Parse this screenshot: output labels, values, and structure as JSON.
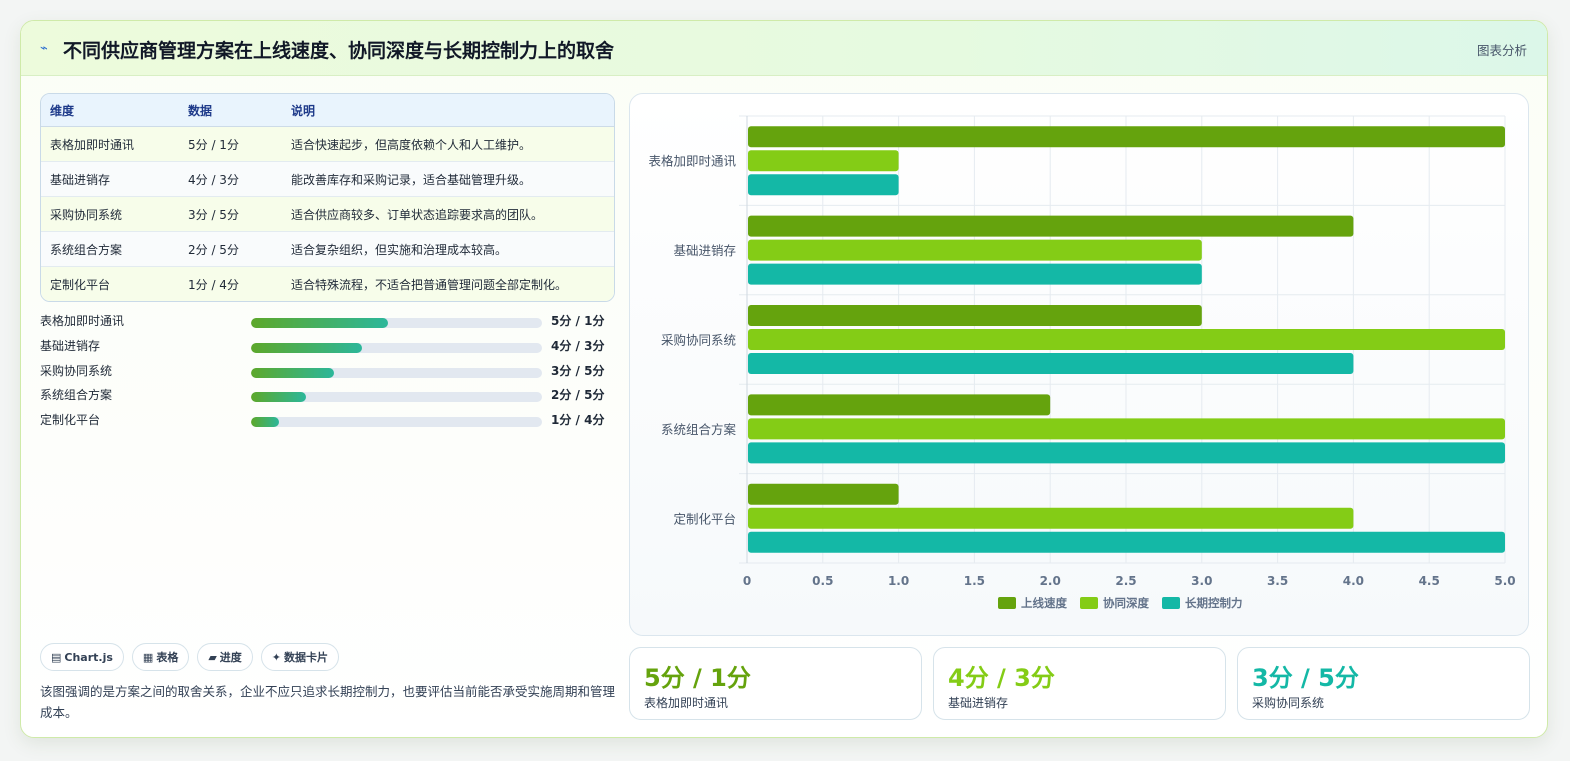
{
  "header": {
    "icon": "lightning-icon",
    "title": "不同供应商管理方案在上线速度、协同深度与长期控制力上的取舍",
    "action": "图表分析"
  },
  "table": {
    "headers": [
      "维度",
      "数据",
      "说明"
    ],
    "rows": [
      {
        "name": "表格加即时通讯",
        "data": "5分 / 1分",
        "desc": "适合快速起步，但高度依赖个人和人工维护。"
      },
      {
        "name": "基础进销存",
        "data": "4分 / 3分",
        "desc": "能改善库存和采购记录，适合基础管理升级。"
      },
      {
        "name": "采购协同系统",
        "data": "3分 / 5分",
        "desc": "适合供应商较多、订单状态追踪要求高的团队。"
      },
      {
        "name": "系统组合方案",
        "data": "2分 / 5分",
        "desc": "适合复杂组织，但实施和治理成本较高。"
      },
      {
        "name": "定制化平台",
        "data": "1分 / 4分",
        "desc": "适合特殊流程，不适合把普通管理问题全部定制化。"
      }
    ]
  },
  "progress": [
    {
      "label": "表格加即时通讯",
      "value": "5分 / 1分",
      "fraction": 0.47
    },
    {
      "label": "基础进销存",
      "value": "4分 / 3分",
      "fraction": 0.38
    },
    {
      "label": "采购协同系统",
      "value": "3分 / 5分",
      "fraction": 0.285
    },
    {
      "label": "系统组合方案",
      "value": "2分 / 5分",
      "fraction": 0.19
    },
    {
      "label": "定制化平台",
      "value": "1分 / 4分",
      "fraction": 0.095
    }
  ],
  "tags": [
    {
      "icon": "chart-icon",
      "glyph": "▤",
      "label": "Chart.js"
    },
    {
      "icon": "table-icon",
      "glyph": "▦",
      "label": "表格"
    },
    {
      "icon": "progress-icon",
      "glyph": "▰",
      "label": "进度"
    },
    {
      "icon": "sparkle-icon",
      "glyph": "✦",
      "label": "数据卡片"
    }
  ],
  "note": "该图强调的是方案之间的取舍关系，企业不应只追求长期控制力，也要评估当前能否承受实施周期和管理成本。",
  "stats": [
    {
      "value": "5分 / 1分",
      "label": "表格加即时通讯",
      "color": "#65a30d"
    },
    {
      "value": "4分 / 3分",
      "label": "基础进销存",
      "color": "#84cc16"
    },
    {
      "value": "3分 / 5分",
      "label": "采购协同系统",
      "color": "#14b8a6"
    }
  ],
  "chart_data": {
    "type": "bar",
    "orientation": "horizontal",
    "categories": [
      "表格加即时通讯",
      "基础进销存",
      "采购协同系统",
      "系统组合方案",
      "定制化平台"
    ],
    "series": [
      {
        "name": "上线速度",
        "values": [
          5,
          4,
          3,
          2,
          1
        ],
        "color": "#65a30d"
      },
      {
        "name": "协同深度",
        "values": [
          1,
          3,
          5,
          5,
          4
        ],
        "color": "#84cc16"
      },
      {
        "name": "长期控制力",
        "values": [
          1,
          3,
          4,
          5,
          5
        ],
        "color": "#14b8a6"
      }
    ],
    "xlim": [
      0,
      5
    ],
    "xticks": [
      "0",
      "0.5",
      "1.0",
      "1.5",
      "2.0",
      "2.5",
      "3.0",
      "3.5",
      "4.0",
      "4.5",
      "5.0"
    ],
    "grid": true,
    "legend": "bottom"
  }
}
